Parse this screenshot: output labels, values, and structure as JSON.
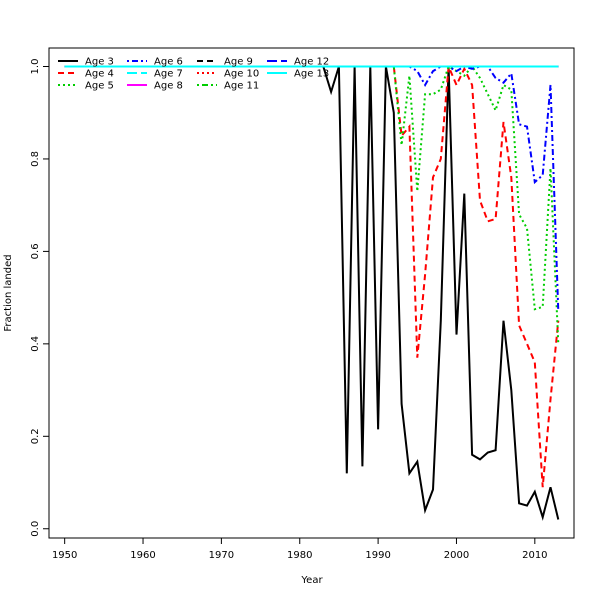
{
  "chart_data": {
    "type": "line",
    "title": "",
    "xlabel": "Year",
    "ylabel": "Fraction landed",
    "xlim": [
      1948,
      2015
    ],
    "ylim": [
      -0.02,
      1.04
    ],
    "xticks": [
      1950,
      1960,
      1970,
      1980,
      1990,
      2000,
      2010
    ],
    "yticks": [
      0.0,
      0.2,
      0.4,
      0.6,
      0.8,
      1.0
    ],
    "grid": false,
    "legend_position": "top-left",
    "series": [
      {
        "name": "Age 3",
        "color": "#000000",
        "dash": "solid",
        "points": [
          [
            1950,
            1.0
          ],
          [
            1983,
            1.0
          ],
          [
            1984,
            0.945
          ],
          [
            1985,
            1.0
          ],
          [
            1986,
            0.12
          ],
          [
            1987,
            1.0
          ],
          [
            1988,
            0.135
          ],
          [
            1989,
            1.0
          ],
          [
            1990,
            0.215
          ],
          [
            1991,
            1.0
          ],
          [
            1992,
            0.9
          ],
          [
            1993,
            0.27
          ],
          [
            1994,
            0.12
          ],
          [
            1995,
            0.145
          ],
          [
            1996,
            0.04
          ],
          [
            1997,
            0.085
          ],
          [
            1998,
            0.45
          ],
          [
            1999,
            1.0
          ],
          [
            2000,
            0.42
          ],
          [
            2001,
            0.725
          ],
          [
            2002,
            0.16
          ],
          [
            2003,
            0.15
          ],
          [
            2004,
            0.165
          ],
          [
            2005,
            0.17
          ],
          [
            2006,
            0.45
          ],
          [
            2007,
            0.3
          ],
          [
            2008,
            0.055
          ],
          [
            2009,
            0.05
          ],
          [
            2010,
            0.08
          ],
          [
            2011,
            0.025
          ],
          [
            2012,
            0.09
          ],
          [
            2013,
            0.02
          ]
        ]
      },
      {
        "name": "Age 4",
        "color": "#ff0000",
        "dash": "dashed",
        "points": [
          [
            1950,
            1.0
          ],
          [
            1992,
            1.0
          ],
          [
            1993,
            0.85
          ],
          [
            1994,
            0.87
          ],
          [
            1995,
            0.37
          ],
          [
            1996,
            0.55
          ],
          [
            1997,
            0.76
          ],
          [
            1998,
            0.8
          ],
          [
            1999,
            1.0
          ],
          [
            2000,
            0.96
          ],
          [
            2001,
            0.995
          ],
          [
            2002,
            0.96
          ],
          [
            2003,
            0.71
          ],
          [
            2004,
            0.665
          ],
          [
            2005,
            0.67
          ],
          [
            2006,
            0.88
          ],
          [
            2007,
            0.76
          ],
          [
            2008,
            0.44
          ],
          [
            2009,
            0.4
          ],
          [
            2010,
            0.36
          ],
          [
            2011,
            0.09
          ],
          [
            2012,
            0.28
          ],
          [
            2013,
            0.45
          ]
        ]
      },
      {
        "name": "Age 5",
        "color": "#00cd00",
        "dash": "dotted",
        "points": [
          [
            1950,
            1.0
          ],
          [
            1992,
            1.0
          ],
          [
            1993,
            0.83
          ],
          [
            1994,
            0.98
          ],
          [
            1995,
            0.73
          ],
          [
            1996,
            0.94
          ],
          [
            1997,
            0.94
          ],
          [
            1998,
            0.95
          ],
          [
            1999,
            1.0
          ],
          [
            2000,
            0.99
          ],
          [
            2001,
            0.98
          ],
          [
            2002,
            1.0
          ],
          [
            2003,
            0.975
          ],
          [
            2004,
            0.94
          ],
          [
            2005,
            0.905
          ],
          [
            2006,
            0.96
          ],
          [
            2007,
            0.95
          ],
          [
            2008,
            0.68
          ],
          [
            2009,
            0.65
          ],
          [
            2010,
            0.475
          ],
          [
            2011,
            0.48
          ],
          [
            2012,
            0.78
          ],
          [
            2013,
            0.4
          ]
        ]
      },
      {
        "name": "Age 6",
        "color": "#0000ff",
        "dash": "dotdash",
        "points": [
          [
            1950,
            1.0
          ],
          [
            1994,
            1.0
          ],
          [
            1995,
            0.99
          ],
          [
            1996,
            0.96
          ],
          [
            1997,
            0.99
          ],
          [
            1998,
            1.0
          ],
          [
            1999,
            1.0
          ],
          [
            2000,
            0.99
          ],
          [
            2001,
            1.0
          ],
          [
            2002,
            0.995
          ],
          [
            2003,
            1.0
          ],
          [
            2004,
            1.0
          ],
          [
            2005,
            0.975
          ],
          [
            2006,
            0.965
          ],
          [
            2007,
            0.985
          ],
          [
            2008,
            0.875
          ],
          [
            2009,
            0.87
          ],
          [
            2010,
            0.75
          ],
          [
            2011,
            0.765
          ],
          [
            2012,
            0.96
          ],
          [
            2013,
            0.47
          ]
        ]
      },
      {
        "name": "Age 7",
        "color": "#00ffff",
        "dash": "longdash",
        "points": [
          [
            1950,
            1.0
          ],
          [
            2013,
            1.0
          ]
        ]
      },
      {
        "name": "Age 8",
        "color": "#ff00ff",
        "dash": "solid",
        "points": [
          [
            1950,
            1.0
          ],
          [
            2013,
            1.0
          ]
        ]
      },
      {
        "name": "Age 9",
        "color": "#000000",
        "dash": "dashed",
        "points": [
          [
            1950,
            1.0
          ],
          [
            2013,
            1.0
          ]
        ]
      },
      {
        "name": "Age 10",
        "color": "#ff0000",
        "dash": "dotted",
        "points": [
          [
            1950,
            1.0
          ],
          [
            2013,
            1.0
          ]
        ]
      },
      {
        "name": "Age 11",
        "color": "#00cd00",
        "dash": "dotdash",
        "points": [
          [
            1950,
            1.0
          ],
          [
            2013,
            1.0
          ]
        ]
      },
      {
        "name": "Age 12",
        "color": "#0000ff",
        "dash": "longdash",
        "points": [
          [
            1950,
            1.0
          ],
          [
            2013,
            1.0
          ]
        ]
      },
      {
        "name": "Age 13",
        "color": "#00ffff",
        "dash": "solid",
        "points": [
          [
            1950,
            1.0
          ],
          [
            2013,
            1.0
          ]
        ]
      }
    ]
  }
}
